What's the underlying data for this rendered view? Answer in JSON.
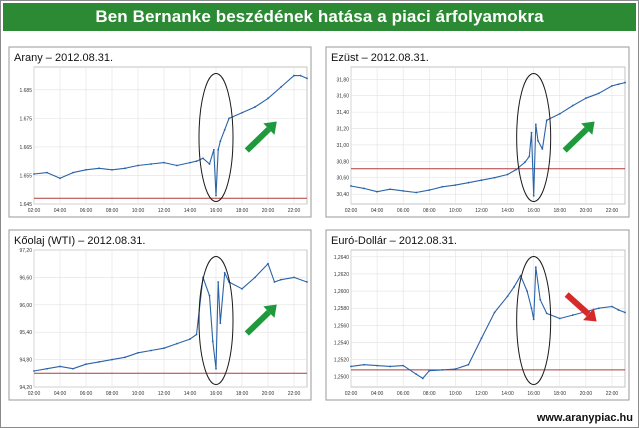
{
  "header": {
    "title": "Ben Bernanke beszédének hatása a piaci árfolyamokra"
  },
  "footer": {
    "url": "www.aranypiac.hu"
  },
  "colors": {
    "banner_bg": "#2c8a34",
    "series_line": "#2a63a8",
    "reference_line": "#b03a3a",
    "arrow_up": "#1e9a3c",
    "arrow_down": "#d62a2a"
  },
  "chart_data": [
    {
      "type": "line",
      "title": "Arany – 2012.08.31.",
      "x_ticks": [
        "02:00",
        "04:00",
        "06:00",
        "08:00",
        "10:00",
        "12:00",
        "14:00",
        "16:00",
        "18:00",
        "20:00",
        "22:00"
      ],
      "y_ticks": [
        "1.645",
        "1.655",
        "1.665",
        "1.675",
        "1.685"
      ],
      "ylim": [
        1645,
        1693
      ],
      "reference_y": 1647,
      "arrow": "up",
      "x": [
        "02:00",
        "03:00",
        "04:00",
        "05:00",
        "06:00",
        "07:00",
        "08:00",
        "09:00",
        "10:00",
        "11:00",
        "12:00",
        "13:00",
        "14:00",
        "14:30",
        "15:00",
        "15:30",
        "15:50",
        "16:00",
        "16:10",
        "16:20",
        "16:40",
        "17:00",
        "18:00",
        "19:00",
        "20:00",
        "21:00",
        "22:00",
        "22:30",
        "23:00"
      ],
      "y": [
        1655.5,
        1656,
        1654,
        1656,
        1657,
        1657.5,
        1657,
        1657.5,
        1658.5,
        1659,
        1659.5,
        1658.5,
        1659.5,
        1660,
        1661,
        1659,
        1664,
        1648,
        1664,
        1667,
        1671,
        1675,
        1677,
        1679,
        1682,
        1686,
        1690,
        1690,
        1689
      ]
    },
    {
      "type": "line",
      "title": "Ezüst – 2012.08.31.",
      "x_ticks": [
        "02:00",
        "04:00",
        "06:00",
        "08:00",
        "10:00",
        "12:00",
        "14:00",
        "16:00",
        "18:00",
        "20:00",
        "22:00"
      ],
      "y_ticks": [
        "30,40",
        "30,60",
        "30,80",
        "31,00",
        "31,20",
        "31,40",
        "31,60",
        "31,80"
      ],
      "ylim": [
        30.28,
        31.95
      ],
      "reference_y": 30.71,
      "arrow": "up",
      "x": [
        "02:00",
        "03:00",
        "04:00",
        "05:00",
        "06:00",
        "07:00",
        "08:00",
        "09:00",
        "10:00",
        "11:00",
        "12:00",
        "13:00",
        "14:00",
        "14:40",
        "15:20",
        "15:40",
        "15:50",
        "16:00",
        "16:10",
        "16:20",
        "16:40",
        "17:00",
        "18:00",
        "19:00",
        "20:00",
        "21:00",
        "22:00",
        "22:30",
        "23:00"
      ],
      "y": [
        30.5,
        30.47,
        30.43,
        30.46,
        30.44,
        30.42,
        30.45,
        30.49,
        30.51,
        30.54,
        30.57,
        30.6,
        30.64,
        30.7,
        30.79,
        30.86,
        31.15,
        30.38,
        31.25,
        31.05,
        30.95,
        31.3,
        31.38,
        31.48,
        31.57,
        31.63,
        31.72,
        31.74,
        31.76
      ]
    },
    {
      "type": "line",
      "title": "Kőolaj (WTI) – 2012.08.31.",
      "x_ticks": [
        "02:00",
        "04:00",
        "06:00",
        "08:00",
        "10:00",
        "12:00",
        "14:00",
        "16:00",
        "18:00",
        "20:00",
        "22:00"
      ],
      "y_ticks": [
        "94,20",
        "94,80",
        "95,40",
        "96,00",
        "96,60",
        "97,20"
      ],
      "ylim": [
        94.2,
        97.2
      ],
      "reference_y": 94.5,
      "arrow": "up",
      "x": [
        "02:00",
        "03:00",
        "04:00",
        "05:00",
        "06:00",
        "07:00",
        "08:00",
        "09:00",
        "10:00",
        "11:00",
        "12:00",
        "13:00",
        "14:00",
        "14:30",
        "15:00",
        "15:30",
        "15:45",
        "16:00",
        "16:10",
        "16:20",
        "16:40",
        "17:00",
        "18:00",
        "19:00",
        "20:00",
        "20:30",
        "21:00",
        "22:00",
        "23:00"
      ],
      "y": [
        94.55,
        94.6,
        94.65,
        94.6,
        94.7,
        94.75,
        94.8,
        94.85,
        94.95,
        95.0,
        95.05,
        95.15,
        95.25,
        95.35,
        96.6,
        96.2,
        95.2,
        94.6,
        96.5,
        95.6,
        96.7,
        96.5,
        96.35,
        96.6,
        96.9,
        96.5,
        96.55,
        96.6,
        96.5
      ]
    },
    {
      "type": "line",
      "title": "Euró-Dollár – 2012.08.31.",
      "x_ticks": [
        "02:00",
        "04:00",
        "06:00",
        "08:00",
        "10:00",
        "12:00",
        "14:00",
        "16:00",
        "18:00",
        "20:00",
        "22:00"
      ],
      "y_ticks": [
        "1,2500",
        "1,2520",
        "1,2540",
        "1,2560",
        "1,2580",
        "1,2600",
        "1,2620",
        "1,2640"
      ],
      "ylim": [
        1.2488,
        1.2648
      ],
      "reference_y": 1.2508,
      "arrow": "down",
      "x": [
        "02:00",
        "03:00",
        "04:00",
        "05:00",
        "06:00",
        "07:00",
        "07:30",
        "08:00",
        "09:00",
        "10:00",
        "11:00",
        "12:00",
        "13:00",
        "14:00",
        "14:30",
        "15:00",
        "15:30",
        "15:50",
        "16:00",
        "16:10",
        "16:30",
        "17:00",
        "18:00",
        "19:00",
        "20:00",
        "21:00",
        "22:00",
        "22:30",
        "23:00"
      ],
      "y": [
        1.2512,
        1.2514,
        1.2513,
        1.2512,
        1.2513,
        1.2503,
        1.2498,
        1.2507,
        1.2508,
        1.2509,
        1.2514,
        1.2545,
        1.2575,
        1.2594,
        1.2605,
        1.2618,
        1.26,
        1.258,
        1.2567,
        1.2628,
        1.259,
        1.2574,
        1.2568,
        1.2572,
        1.2576,
        1.258,
        1.2582,
        1.2578,
        1.2575
      ]
    }
  ]
}
